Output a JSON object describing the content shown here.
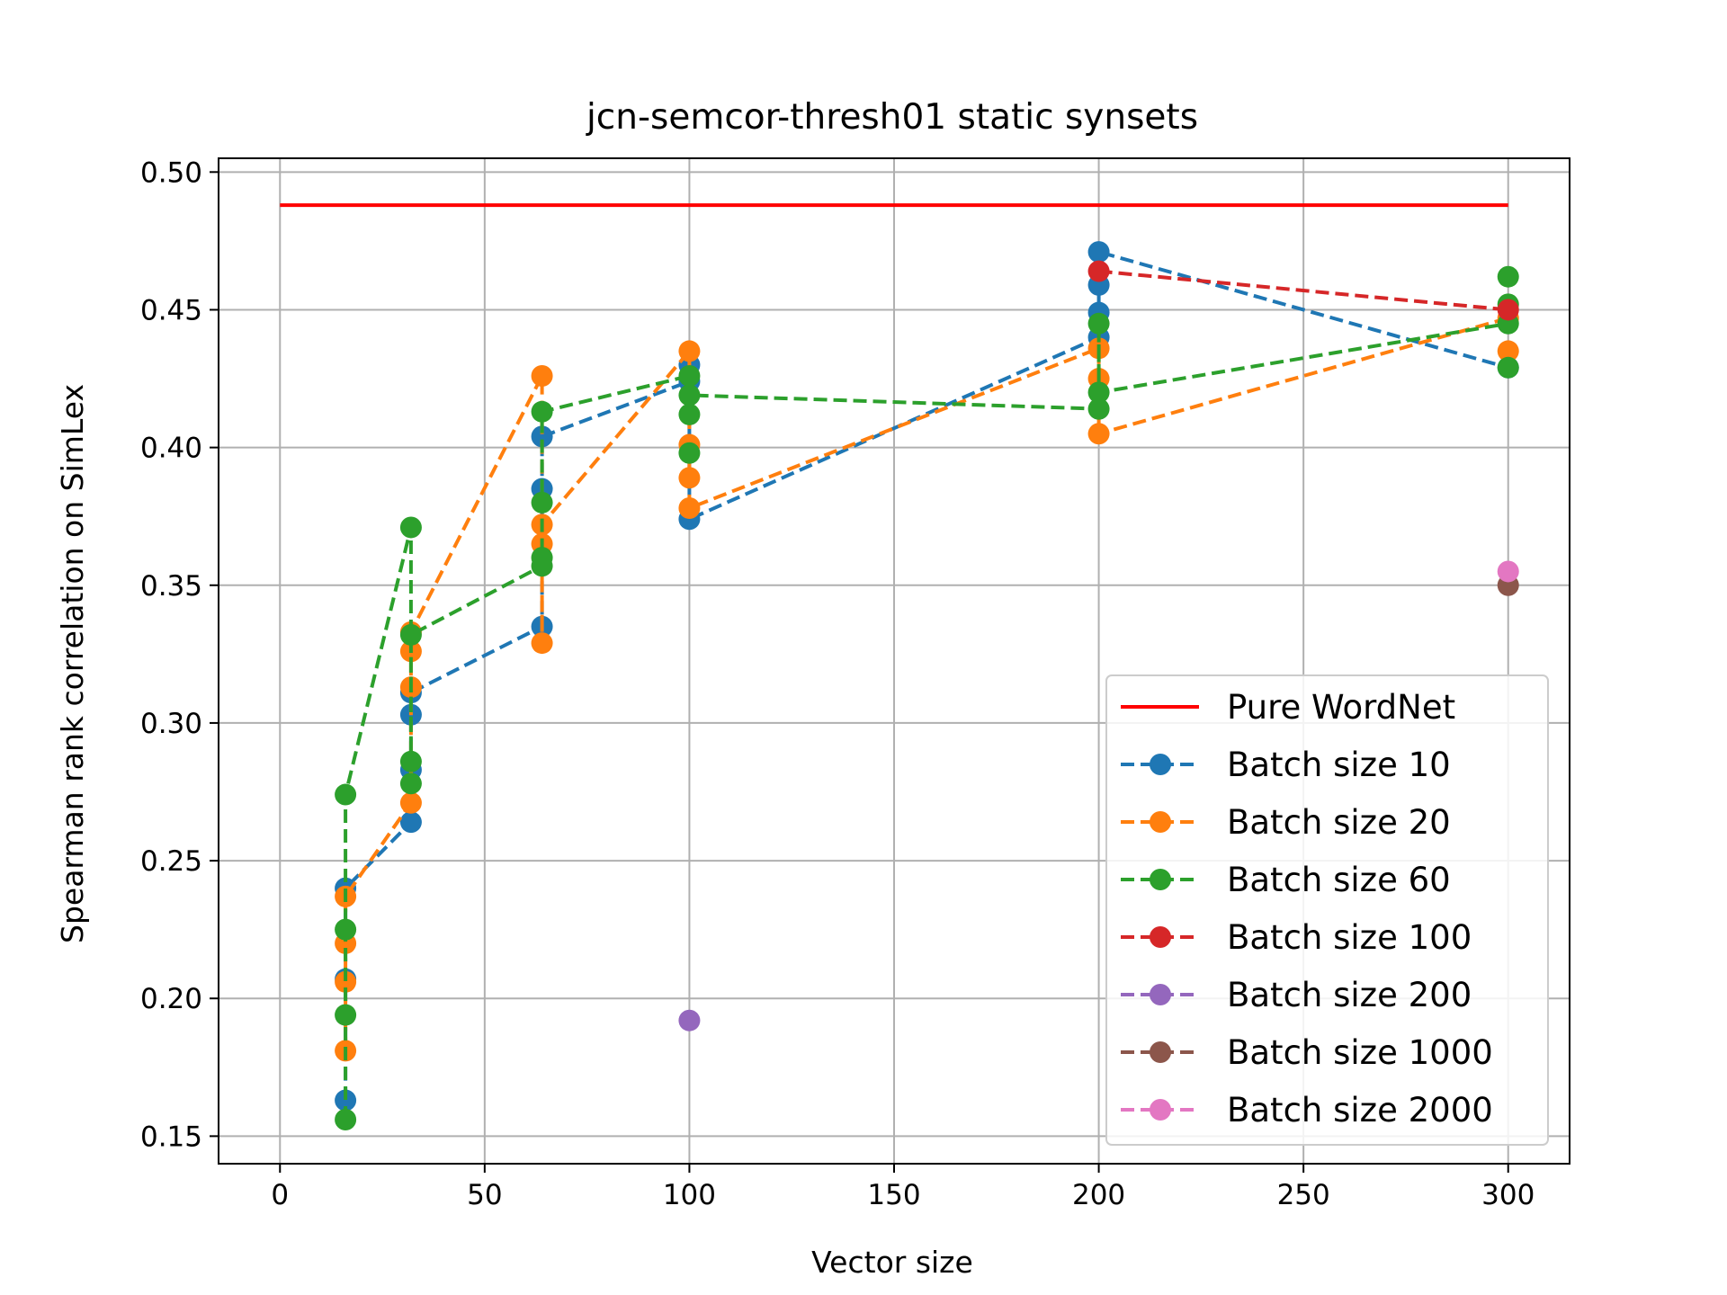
{
  "chart_data": {
    "type": "line",
    "title": "jcn-semcor-thresh01 static synsets",
    "xlabel": "Vector size",
    "ylabel": "Spearman rank correlation on SimLex",
    "xlim": [
      -15,
      315
    ],
    "ylim": [
      0.14,
      0.505
    ],
    "xticks": [
      0,
      50,
      100,
      150,
      200,
      250,
      300
    ],
    "yticks": [
      0.15,
      0.2,
      0.25,
      0.3,
      0.35,
      0.4,
      0.45,
      0.5
    ],
    "grid": true,
    "legend_position": "lower-right",
    "reference_line": {
      "name": "Pure WordNet",
      "color": "#ff0000",
      "x": [
        0,
        300
      ],
      "y": [
        0.488,
        0.488
      ]
    },
    "series": [
      {
        "name": "Batch size 10",
        "color": "#1f77b4",
        "points": [
          [
            16,
            0.163
          ],
          [
            16,
            0.207
          ],
          [
            16,
            0.24
          ],
          [
            32,
            0.264
          ],
          [
            32,
            0.283
          ],
          [
            32,
            0.303
          ],
          [
            32,
            0.311
          ],
          [
            64,
            0.335
          ],
          [
            64,
            0.385
          ],
          [
            64,
            0.404
          ],
          [
            100,
            0.374
          ],
          [
            100,
            0.424
          ],
          [
            100,
            0.43
          ],
          [
            200,
            0.44
          ],
          [
            200,
            0.449
          ],
          [
            200,
            0.459
          ],
          [
            200,
            0.471
          ],
          [
            300,
            0.429
          ]
        ],
        "path": [
          [
            16,
            0.163
          ],
          [
            16,
            0.24
          ],
          [
            32,
            0.264
          ],
          [
            32,
            0.311
          ],
          [
            64,
            0.335
          ],
          [
            64,
            0.404
          ],
          [
            100,
            0.424
          ],
          [
            100,
            0.374
          ],
          [
            200,
            0.44
          ],
          [
            200,
            0.471
          ],
          [
            300,
            0.429
          ]
        ]
      },
      {
        "name": "Batch size 20",
        "color": "#ff7f0e",
        "points": [
          [
            16,
            0.181
          ],
          [
            16,
            0.206
          ],
          [
            16,
            0.22
          ],
          [
            16,
            0.237
          ],
          [
            32,
            0.271
          ],
          [
            32,
            0.313
          ],
          [
            32,
            0.326
          ],
          [
            32,
            0.333
          ],
          [
            64,
            0.329
          ],
          [
            64,
            0.365
          ],
          [
            64,
            0.372
          ],
          [
            64,
            0.426
          ],
          [
            100,
            0.378
          ],
          [
            100,
            0.389
          ],
          [
            100,
            0.401
          ],
          [
            100,
            0.435
          ],
          [
            200,
            0.405
          ],
          [
            200,
            0.425
          ],
          [
            200,
            0.436
          ],
          [
            300,
            0.435
          ],
          [
            300,
            0.447
          ]
        ],
        "path": [
          [
            16,
            0.181
          ],
          [
            16,
            0.237
          ],
          [
            32,
            0.271
          ],
          [
            32,
            0.333
          ],
          [
            64,
            0.426
          ],
          [
            64,
            0.329
          ],
          [
            64,
            0.372
          ],
          [
            100,
            0.435
          ],
          [
            100,
            0.378
          ],
          [
            200,
            0.436
          ],
          [
            200,
            0.405
          ],
          [
            300,
            0.447
          ]
        ]
      },
      {
        "name": "Batch size 60",
        "color": "#2ca02c",
        "points": [
          [
            16,
            0.156
          ],
          [
            16,
            0.194
          ],
          [
            16,
            0.225
          ],
          [
            16,
            0.274
          ],
          [
            32,
            0.278
          ],
          [
            32,
            0.286
          ],
          [
            32,
            0.332
          ],
          [
            32,
            0.371
          ],
          [
            64,
            0.357
          ],
          [
            64,
            0.36
          ],
          [
            64,
            0.38
          ],
          [
            64,
            0.413
          ],
          [
            100,
            0.398
          ],
          [
            100,
            0.412
          ],
          [
            100,
            0.419
          ],
          [
            100,
            0.426
          ],
          [
            200,
            0.414
          ],
          [
            200,
            0.42
          ],
          [
            200,
            0.445
          ],
          [
            300,
            0.429
          ],
          [
            300,
            0.445
          ],
          [
            300,
            0.452
          ],
          [
            300,
            0.462
          ]
        ],
        "path": [
          [
            16,
            0.156
          ],
          [
            16,
            0.274
          ],
          [
            32,
            0.371
          ],
          [
            32,
            0.278
          ],
          [
            32,
            0.332
          ],
          [
            64,
            0.357
          ],
          [
            64,
            0.413
          ],
          [
            100,
            0.426
          ],
          [
            100,
            0.419
          ],
          [
            200,
            0.414
          ],
          [
            200,
            0.445
          ],
          [
            200,
            0.42
          ],
          [
            300,
            0.445
          ]
        ]
      },
      {
        "name": "Batch size 100",
        "color": "#d62728",
        "points": [
          [
            200,
            0.464
          ],
          [
            300,
            0.45
          ]
        ],
        "path": [
          [
            200,
            0.464
          ],
          [
            300,
            0.45
          ]
        ]
      },
      {
        "name": "Batch size 200",
        "color": "#9467bd",
        "points": [
          [
            100,
            0.192
          ]
        ],
        "path": []
      },
      {
        "name": "Batch size 1000",
        "color": "#8c564b",
        "points": [
          [
            300,
            0.35
          ]
        ],
        "path": []
      },
      {
        "name": "Batch size 2000",
        "color": "#e377c2",
        "points": [
          [
            300,
            0.355
          ]
        ],
        "path": []
      }
    ]
  }
}
